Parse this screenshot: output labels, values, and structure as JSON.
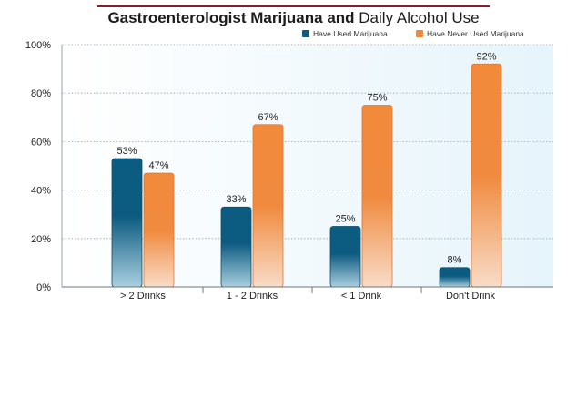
{
  "title": {
    "bold": "Gastroenterologist Marijuana and",
    "regular": "Daily Alcohol Use"
  },
  "colors": {
    "used": "#0d5b80",
    "never_used": "#f08a3e",
    "title_rule": "#8a1c2b",
    "plot_bg": "#e8f5fb"
  },
  "chart_data": {
    "type": "bar",
    "title": "Gastroenterologist Marijuana and Daily Alcohol Use",
    "categories": [
      "> 2 Drinks",
      "1 - 2 Drinks",
      "< 1 Drink",
      "Don't Drink"
    ],
    "series": [
      {
        "name": "Have Used Marijuana",
        "values": [
          53,
          33,
          25,
          8
        ]
      },
      {
        "name": "Have Never Used Marijuana",
        "values": [
          47,
          67,
          75,
          92
        ]
      }
    ],
    "data_labels": [
      [
        "53%",
        "33%",
        "25%",
        "8%"
      ],
      [
        "47%",
        "67%",
        "75%",
        "92%"
      ]
    ],
    "y_ticks": [
      "0%",
      "20%",
      "40%",
      "60%",
      "80%",
      "100%"
    ],
    "ylim": [
      0,
      100
    ],
    "grid": true,
    "legend_position": "top-right"
  }
}
